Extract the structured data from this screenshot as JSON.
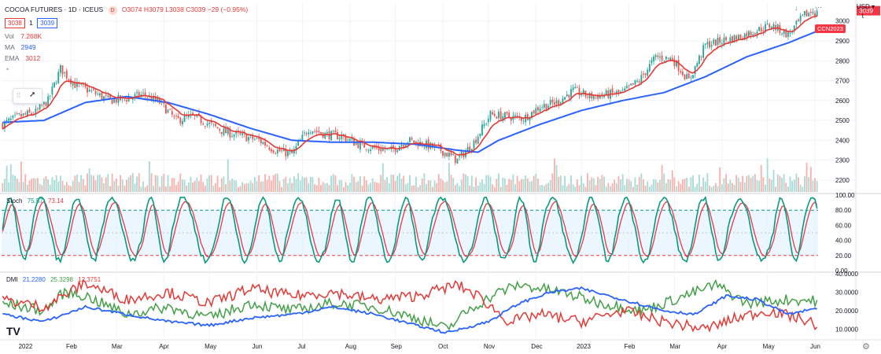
{
  "header": {
    "title": "COCOA FUTURES · 1D · ICEUS",
    "open": "O3074",
    "high": "H3079",
    "low": "L3038",
    "close": "C3039",
    "change": "−29 (−0.95%)",
    "bid": "3038",
    "qty": "1",
    "ask": "3039",
    "vol_label": "Vol",
    "vol_value": "7.268K",
    "ma_label": "MA",
    "ma_value": "2949",
    "ema_label": "EMA",
    "ema_value": "3012",
    "currency": "USD",
    "symbol_tag": "CCN2023",
    "logo": "TV"
  },
  "colors": {
    "up": "#26a69a",
    "down": "#ef5350",
    "ma": "#2962ff",
    "ema": "#e53935",
    "stoch_k": "#089981",
    "stoch_d": "#f23645",
    "dmi_plus": "#43a047",
    "dmi_minus": "#e53935",
    "adx": "#2962ff"
  },
  "chart_data": [
    {
      "type": "candlestick",
      "title": "COCOA FUTURES · 1D · ICEUS",
      "x_ticks": [
        "2022",
        "Feb",
        "Mar",
        "Apr",
        "May",
        "Jun",
        "Jul",
        "Aug",
        "Sep",
        "Oct",
        "Nov",
        "Dec",
        "2023",
        "Feb",
        "Mar",
        "Apr",
        "May",
        "Jun"
      ],
      "y_ticks": [
        3000,
        2900,
        2800,
        2700,
        2600,
        2500,
        2400,
        2300,
        2200
      ],
      "ylim": [
        2140,
        3090
      ],
      "price_anchors": [
        [
          0,
          2480
        ],
        [
          8,
          2520
        ],
        [
          16,
          2540
        ],
        [
          22,
          2600
        ],
        [
          28,
          2760
        ],
        [
          35,
          2680
        ],
        [
          44,
          2640
        ],
        [
          52,
          2600
        ],
        [
          60,
          2610
        ],
        [
          68,
          2630
        ],
        [
          76,
          2590
        ],
        [
          84,
          2500
        ],
        [
          92,
          2520
        ],
        [
          100,
          2480
        ],
        [
          108,
          2440
        ],
        [
          116,
          2420
        ],
        [
          124,
          2400
        ],
        [
          132,
          2350
        ],
        [
          140,
          2330
        ],
        [
          148,
          2460
        ],
        [
          156,
          2430
        ],
        [
          164,
          2420
        ],
        [
          172,
          2380
        ],
        [
          180,
          2360
        ],
        [
          188,
          2350
        ],
        [
          196,
          2400
        ],
        [
          204,
          2380
        ],
        [
          212,
          2350
        ],
        [
          220,
          2300
        ],
        [
          228,
          2390
        ],
        [
          236,
          2530
        ],
        [
          244,
          2520
        ],
        [
          252,
          2510
        ],
        [
          260,
          2570
        ],
        [
          268,
          2590
        ],
        [
          276,
          2650
        ],
        [
          284,
          2620
        ],
        [
          292,
          2630
        ],
        [
          300,
          2640
        ],
        [
          308,
          2700
        ],
        [
          316,
          2820
        ],
        [
          324,
          2810
        ],
        [
          332,
          2700
        ],
        [
          340,
          2880
        ],
        [
          348,
          2900
        ],
        [
          356,
          2920
        ],
        [
          364,
          2950
        ],
        [
          372,
          2980
        ],
        [
          380,
          2930
        ],
        [
          388,
          3030
        ],
        [
          392,
          3050
        ],
        [
          394,
          3039
        ]
      ],
      "ma_anchors": [
        [
          0,
          2490
        ],
        [
          20,
          2500
        ],
        [
          40,
          2590
        ],
        [
          60,
          2620
        ],
        [
          80,
          2590
        ],
        [
          100,
          2530
        ],
        [
          120,
          2460
        ],
        [
          140,
          2400
        ],
        [
          160,
          2390
        ],
        [
          180,
          2390
        ],
        [
          200,
          2380
        ],
        [
          220,
          2350
        ],
        [
          230,
          2340
        ],
        [
          240,
          2400
        ],
        [
          260,
          2480
        ],
        [
          280,
          2550
        ],
        [
          300,
          2600
        ],
        [
          320,
          2640
        ],
        [
          340,
          2720
        ],
        [
          360,
          2820
        ],
        [
          380,
          2890
        ],
        [
          394,
          2949
        ]
      ],
      "legend": [
        "Vol 7.268K",
        "MA 2949",
        "EMA 3012"
      ]
    },
    {
      "type": "line",
      "name": "Stoch",
      "values_label": [
        "75.57",
        "73.14"
      ],
      "y_ticks": [
        100,
        80,
        60,
        40,
        20,
        0
      ],
      "ylim": [
        0,
        100
      ],
      "bands": [
        80,
        20
      ],
      "period_bars": [
        14,
        18,
        16,
        20,
        14,
        22,
        18,
        16,
        20,
        15,
        18,
        16,
        22,
        18,
        14,
        20,
        16,
        18,
        20,
        16,
        22
      ]
    },
    {
      "type": "line",
      "name": "DMI",
      "values_label": [
        "21.2280",
        "25.3298",
        "12.3751"
      ],
      "y_ticks": [
        40,
        30,
        20,
        10
      ],
      "ylim": [
        5,
        40
      ],
      "plus_anchors": [
        [
          0,
          24
        ],
        [
          20,
          20
        ],
        [
          30,
          30
        ],
        [
          40,
          28
        ],
        [
          60,
          18
        ],
        [
          80,
          22
        ],
        [
          100,
          16
        ],
        [
          120,
          24
        ],
        [
          140,
          20
        ],
        [
          160,
          24
        ],
        [
          180,
          22
        ],
        [
          200,
          16
        ],
        [
          215,
          10
        ],
        [
          225,
          20
        ],
        [
          240,
          30
        ],
        [
          250,
          34
        ],
        [
          270,
          30
        ],
        [
          290,
          24
        ],
        [
          310,
          20
        ],
        [
          330,
          28
        ],
        [
          345,
          34
        ],
        [
          360,
          24
        ],
        [
          380,
          26
        ],
        [
          394,
          25.33
        ]
      ],
      "minus_anchors": [
        [
          0,
          26
        ],
        [
          20,
          22
        ],
        [
          40,
          35
        ],
        [
          60,
          26
        ],
        [
          80,
          30
        ],
        [
          100,
          24
        ],
        [
          120,
          32
        ],
        [
          140,
          28
        ],
        [
          160,
          30
        ],
        [
          180,
          26
        ],
        [
          200,
          28
        ],
        [
          220,
          34
        ],
        [
          230,
          28
        ],
        [
          245,
          14
        ],
        [
          260,
          18
        ],
        [
          280,
          14
        ],
        [
          300,
          20
        ],
        [
          320,
          14
        ],
        [
          340,
          10
        ],
        [
          355,
          16
        ],
        [
          370,
          20
        ],
        [
          385,
          16
        ],
        [
          394,
          12.38
        ]
      ],
      "adx_anchors": [
        [
          0,
          18
        ],
        [
          20,
          14
        ],
        [
          40,
          22
        ],
        [
          60,
          18
        ],
        [
          80,
          14
        ],
        [
          100,
          12
        ],
        [
          120,
          16
        ],
        [
          140,
          18
        ],
        [
          160,
          22
        ],
        [
          180,
          18
        ],
        [
          200,
          12
        ],
        [
          215,
          8
        ],
        [
          235,
          14
        ],
        [
          250,
          24
        ],
        [
          265,
          30
        ],
        [
          280,
          32
        ],
        [
          300,
          26
        ],
        [
          320,
          20
        ],
        [
          335,
          18
        ],
        [
          350,
          28
        ],
        [
          365,
          26
        ],
        [
          380,
          18
        ],
        [
          394,
          21.23
        ]
      ]
    }
  ]
}
